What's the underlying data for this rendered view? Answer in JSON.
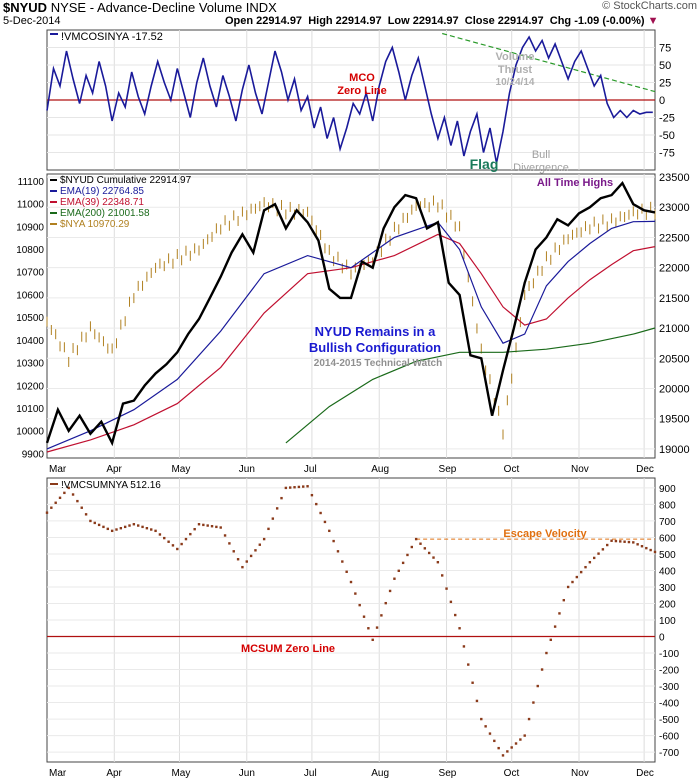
{
  "header": {
    "symbol": "$NYUD",
    "description": "NYSE - Advance-Decline Volume INDX",
    "date": "5-Dec-2014",
    "open": "Open 22914.97",
    "high": "High 22914.97",
    "low": "Low 22914.97",
    "close": "Close 22914.97",
    "chg": "Chg -1.09 (-0.00%)",
    "copyright": "© StockCharts.com"
  },
  "chart_data": [
    {
      "type": "line",
      "panel": "top",
      "legend": "!VMCOSINYA -17.52",
      "series_name": "!VMCOSINYA",
      "y_ticks": [
        75,
        50,
        25,
        0,
        -25,
        -50,
        -75
      ],
      "ylim": [
        -100,
        100
      ],
      "zero_line": 0,
      "x": [
        0,
        3,
        6,
        9,
        12,
        15,
        18,
        21,
        24,
        27,
        30,
        33,
        36,
        39,
        42,
        45,
        48,
        51,
        54,
        57,
        60,
        63,
        66,
        69,
        72,
        75,
        78,
        81,
        84,
        87,
        90,
        93,
        96,
        99,
        102,
        105,
        108,
        111,
        114,
        117,
        120,
        123,
        126,
        129,
        132,
        135,
        138,
        141,
        144,
        147,
        150,
        153,
        156,
        159,
        162,
        165,
        168,
        171,
        174,
        177,
        180,
        183,
        186,
        189,
        192,
        195,
        198,
        201,
        204,
        207,
        210,
        213,
        216,
        219,
        222,
        225,
        228,
        231,
        234,
        237,
        240,
        243,
        246,
        249,
        252,
        255,
        258,
        261,
        264,
        267,
        270,
        273,
        276,
        279
      ],
      "values": [
        -15,
        45,
        20,
        70,
        30,
        -5,
        35,
        10,
        55,
        20,
        -30,
        10,
        -10,
        40,
        5,
        -20,
        20,
        55,
        25,
        0,
        45,
        10,
        -25,
        25,
        60,
        20,
        -10,
        35,
        5,
        -30,
        15,
        50,
        10,
        -20,
        25,
        70,
        40,
        0,
        30,
        -15,
        5,
        -40,
        -10,
        -55,
        -25,
        -70,
        -40,
        -5,
        -20,
        10,
        -30,
        20,
        55,
        75,
        40,
        0,
        35,
        60,
        20,
        -20,
        -55,
        -25,
        -65,
        -30,
        -80,
        -45,
        -20,
        -75,
        -40,
        -90,
        -45,
        10,
        50,
        75,
        90,
        70,
        85,
        60,
        80,
        55,
        30,
        55,
        70,
        45,
        20,
        35,
        -5,
        -25,
        -15,
        -25,
        -15,
        -20,
        -17.52,
        -17.52
      ],
      "annotations": [
        {
          "text": "MCO",
          "color": "#d40000"
        },
        {
          "text": "Zero Line",
          "color": "#d40000"
        },
        {
          "text": "Volume",
          "color": "#b0b0b0"
        },
        {
          "text": "Thrust",
          "color": "#b0b0b0"
        },
        {
          "text": "10/24/14",
          "color": "#b0b0b0"
        },
        {
          "text": "Flag",
          "color": "#1a7a5a"
        },
        {
          "text": "Bull",
          "color": "#a0a0a0"
        },
        {
          "text": "Divergence",
          "color": "#a0a0a0"
        }
      ]
    },
    {
      "type": "line",
      "panel": "middle",
      "legend_entries": [
        {
          "text": "$NYUD Cumulative 22914.97",
          "color": "#000000"
        },
        {
          "text": "EMA(19) 22764.85",
          "color": "#1a1a9a"
        },
        {
          "text": "EMA(39) 22348.71",
          "color": "#c01030"
        },
        {
          "text": "EMA(200) 21001.58",
          "color": "#1a6a1a"
        },
        {
          "text": "$NYA 10970.29",
          "color": "#b08020"
        }
      ],
      "left_ticks": [
        11100,
        11000,
        10900,
        10800,
        10700,
        10600,
        10500,
        10400,
        10300,
        10200,
        10100,
        10000,
        9900
      ],
      "right_ticks": [
        23500,
        23000,
        22500,
        22000,
        21500,
        21000,
        20500,
        20000,
        19500,
        19000
      ],
      "ylim_left": [
        9880,
        11130
      ],
      "ylim_right": [
        18850,
        23550
      ],
      "annotations": [
        {
          "text": "All Time Highs",
          "color": "#7a1a8a"
        },
        {
          "text": "NYUD Remains in a",
          "color": "#1a1ad0"
        },
        {
          "text": "Bullish Configuration",
          "color": "#1a1ad0"
        },
        {
          "text": "2014-2015 Technical Watch",
          "color": "#909090"
        }
      ],
      "series": [
        {
          "name": "$NYUD Cumulative",
          "color": "#000000",
          "x": [
            0,
            5,
            10,
            15,
            20,
            25,
            30,
            35,
            40,
            45,
            50,
            55,
            60,
            65,
            70,
            75,
            80,
            85,
            90,
            95,
            100,
            105,
            110,
            115,
            120,
            125,
            130,
            135,
            140,
            145,
            150,
            155,
            160,
            165,
            170,
            175,
            180,
            185,
            190,
            195,
            200,
            205,
            210,
            215,
            220,
            225,
            230,
            235,
            240,
            245,
            250,
            255,
            260,
            265,
            270,
            275,
            280
          ],
          "values": [
            19100,
            19650,
            19300,
            19550,
            19250,
            19450,
            19100,
            19750,
            19800,
            20050,
            20250,
            20400,
            20600,
            20900,
            21150,
            21500,
            21850,
            22250,
            22550,
            22250,
            22950,
            23050,
            22650,
            22950,
            22750,
            22450,
            21650,
            21500,
            21500,
            22100,
            22000,
            22650,
            23000,
            23200,
            23150,
            22650,
            22750,
            21750,
            21550,
            20550,
            20500,
            19550,
            20300,
            21000,
            21750,
            22300,
            22500,
            22800,
            22700,
            22900,
            23000,
            23150,
            23200,
            23400,
            23050,
            22950,
            22915
          ]
        },
        {
          "name": "EMA(19)",
          "color": "#1a1a9a",
          "x": [
            0,
            20,
            40,
            60,
            80,
            100,
            120,
            140,
            160,
            180,
            190,
            200,
            210,
            220,
            230,
            240,
            250,
            260,
            270,
            280
          ],
          "values": [
            19000,
            19300,
            19650,
            20150,
            20950,
            21900,
            22200,
            22000,
            22500,
            22750,
            22300,
            21350,
            20750,
            20900,
            21700,
            22100,
            22400,
            22650,
            22760,
            22765
          ]
        },
        {
          "name": "EMA(39)",
          "color": "#c01030",
          "x": [
            0,
            20,
            40,
            60,
            80,
            100,
            120,
            140,
            160,
            180,
            190,
            200,
            210,
            220,
            230,
            240,
            250,
            260,
            270,
            280
          ],
          "values": [
            18950,
            19150,
            19400,
            19750,
            20350,
            21250,
            21900,
            22000,
            22200,
            22550,
            22400,
            21900,
            21350,
            21050,
            21150,
            21500,
            21800,
            22050,
            22280,
            22349
          ]
        },
        {
          "name": "EMA(200)",
          "color": "#1a6a1a",
          "x": [
            110,
            130,
            150,
            170,
            190,
            210,
            230,
            250,
            270,
            280
          ],
          "values": [
            19100,
            19700,
            20150,
            20450,
            20600,
            20600,
            20650,
            20750,
            20900,
            21002
          ]
        },
        {
          "name": "$NYA",
          "color": "#b08020",
          "x": [
            0,
            10,
            20,
            30,
            40,
            50,
            60,
            70,
            80,
            90,
            100,
            110,
            120,
            130,
            140,
            150,
            160,
            170,
            180,
            190,
            200,
            210,
            220,
            230,
            240,
            250,
            260,
            270,
            280
          ],
          "values": [
            10480,
            10320,
            10450,
            10350,
            10600,
            10720,
            10760,
            10800,
            10900,
            10950,
            11000,
            10970,
            10960,
            10780,
            10700,
            10750,
            10880,
            10990,
            11000,
            10890,
            10350,
            10000,
            10600,
            10750,
            10850,
            10900,
            10920,
            10960,
            10970
          ]
        }
      ]
    },
    {
      "type": "scatter",
      "panel": "bottom",
      "legend": "!VMCSUMNYA 512.16",
      "series_name": "!VMCSUMNYA",
      "y_ticks": [
        900,
        800,
        700,
        600,
        500,
        400,
        300,
        200,
        100,
        0,
        -100,
        -200,
        -300,
        -400,
        -500,
        -600,
        -700
      ],
      "ylim": [
        -760,
        960
      ],
      "zero_line": 0,
      "escape_velocity": 590,
      "annotations": [
        {
          "text": "Escape Velocity",
          "color": "#e07010"
        },
        {
          "text": "MCSUM Zero Line",
          "color": "#d40000"
        }
      ],
      "x": [
        0,
        10,
        20,
        30,
        40,
        50,
        60,
        70,
        80,
        90,
        100,
        110,
        120,
        130,
        140,
        150,
        160,
        170,
        180,
        190,
        200,
        210,
        220,
        230,
        240,
        250,
        260,
        270,
        280
      ],
      "values": [
        750,
        900,
        700,
        640,
        680,
        640,
        530,
        680,
        660,
        420,
        590,
        900,
        910,
        640,
        330,
        -20,
        350,
        590,
        450,
        50,
        -500,
        -720,
        -600,
        -100,
        300,
        450,
        580,
        570,
        512
      ]
    }
  ],
  "x_axis": {
    "months": [
      "Mar",
      "Apr",
      "May",
      "Jun",
      "Jul",
      "Aug",
      "Sep",
      "Oct",
      "Nov",
      "Dec"
    ]
  }
}
